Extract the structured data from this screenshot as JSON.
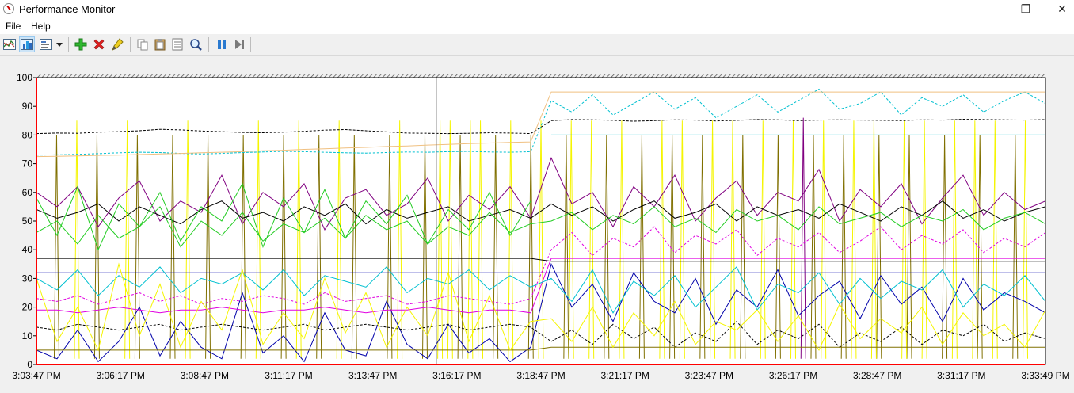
{
  "window": {
    "title": "Performance Monitor",
    "minimize_glyph": "—",
    "restore_glyph": "❐",
    "close_glyph": "✕"
  },
  "menu": {
    "items": [
      "File",
      "Help"
    ]
  },
  "toolbar": {
    "icons": [
      "view-graph-icon",
      "view-histogram-icon",
      "view-report-icon",
      "dropdown-arrow-icon",
      "add-counter-icon",
      "delete-counter-icon",
      "highlight-icon",
      "copy-properties-icon",
      "paste-counter-list-icon",
      "properties-icon",
      "zoom-icon",
      "freeze-display-icon",
      "update-data-icon"
    ]
  },
  "chart_data": {
    "type": "line",
    "ylim": [
      0,
      100
    ],
    "y_ticks": [
      0,
      10,
      20,
      30,
      40,
      50,
      60,
      70,
      80,
      90,
      100
    ],
    "x_tick_labels": [
      "3:03:47 PM",
      "3:06:17 PM",
      "3:08:47 PM",
      "3:11:17 PM",
      "3:13:47 PM",
      "3:16:17 PM",
      "3:18:47 PM",
      "3:21:17 PM",
      "3:23:47 PM",
      "3:26:17 PM",
      "3:28:47 PM",
      "3:31:17 PM",
      "3:33:49 PM"
    ],
    "grid": false,
    "colors": {
      "yellow": "#f5f500",
      "olive": "#807000",
      "green": "#22cc22",
      "purple": "#800080",
      "navy": "#0000aa",
      "cyan": "#00c0d0",
      "magenta": "#e000e0",
      "black": "#000000",
      "peach": "#f0c080",
      "red_axis": "#ff0000"
    },
    "series": [
      {
        "color": "black",
        "dash": "3,2",
        "values": [
          80.5,
          80.7,
          80.6,
          81,
          81.2,
          81.5,
          82,
          81.8,
          81.4,
          81.2,
          80.9,
          80.8,
          81,
          81.3,
          81.7,
          81.9,
          81.5,
          81.1,
          80.7,
          80.6,
          80.5,
          80.6,
          80.8,
          80.7,
          80.5,
          85,
          85.4,
          85.3,
          85.1,
          84.8,
          85,
          85.3,
          85.2,
          84.9,
          85.1,
          85.4,
          85.3,
          85,
          85.2,
          85.3,
          85.2,
          85.1,
          85,
          85.3,
          85.2,
          85.5,
          85.4,
          85.3,
          85.2,
          85.4
        ]
      },
      {
        "color": "cyan",
        "dash": "3,2",
        "values": [
          73,
          73.1,
          73.3,
          73.5,
          73.8,
          74,
          73.9,
          73.6,
          73.4,
          73.6,
          73.9,
          74.1,
          74.3,
          74.2,
          74,
          73.8,
          73.7,
          73.9,
          74.1,
          74,
          74.2,
          74.3,
          74.1,
          74,
          74.2,
          92,
          88,
          94,
          87,
          91,
          95,
          89,
          93,
          86,
          90,
          94,
          88,
          92,
          96,
          89,
          91,
          95,
          87,
          93,
          90,
          94,
          88,
          92,
          95,
          91
        ]
      },
      {
        "color": "peach",
        "dash": "",
        "values": [
          72.5,
          72.6,
          72.7,
          72.9,
          73,
          73.2,
          73.4,
          73.6,
          73.8,
          74,
          74.2,
          74.5,
          74.7,
          75,
          75.2,
          75.5,
          75.7,
          76,
          76.2,
          76.5,
          76.7,
          77,
          77.2,
          77.4,
          77.6,
          95,
          95,
          95,
          95,
          95,
          95,
          95,
          95,
          95,
          95,
          95,
          95,
          95,
          95,
          95,
          95,
          95,
          95,
          95,
          95,
          95,
          95,
          95,
          95,
          95
        ]
      },
      {
        "color": "cyan",
        "dash": "",
        "values": [
          null,
          null,
          null,
          null,
          null,
          null,
          null,
          null,
          null,
          null,
          null,
          null,
          null,
          null,
          null,
          null,
          null,
          null,
          null,
          null,
          null,
          null,
          null,
          null,
          null,
          80,
          80,
          80,
          80,
          80,
          80,
          80,
          80,
          80,
          80,
          80,
          80,
          80,
          80,
          80,
          80,
          80,
          80,
          80,
          80,
          80,
          80,
          80,
          80,
          80
        ]
      },
      {
        "color": "purple",
        "dash": "",
        "values": [
          60,
          55,
          62,
          48,
          58,
          64,
          50,
          57,
          53,
          66,
          49,
          60,
          55,
          63,
          47,
          58,
          61,
          52,
          56,
          65,
          50,
          59,
          54,
          62,
          51,
          72,
          56,
          60,
          48,
          62,
          55,
          66,
          50,
          58,
          64,
          52,
          60,
          57,
          68,
          50,
          61,
          55,
          63,
          49,
          58,
          66,
          52,
          60,
          54,
          57
        ]
      },
      {
        "color": "black",
        "dash": "",
        "values": [
          54,
          51,
          53,
          56,
          50,
          55,
          52,
          49,
          54,
          57,
          51,
          53,
          50,
          55,
          52,
          56,
          49,
          54,
          51,
          53,
          55,
          50,
          52,
          54,
          51,
          56,
          52,
          55,
          50,
          54,
          57,
          51,
          53,
          56,
          50,
          55,
          52,
          54,
          51,
          56,
          53,
          50,
          55,
          52,
          57,
          51,
          54,
          50,
          53,
          55
        ]
      },
      {
        "color": "green",
        "dash": "",
        "values": [
          58,
          45,
          62,
          40,
          56,
          48,
          60,
          43,
          55,
          50,
          63,
          41,
          58,
          46,
          61,
          44,
          57,
          49,
          59,
          42,
          54,
          47,
          60,
          45,
          57,
          null,
          null,
          null,
          null,
          null,
          null,
          null,
          null,
          null,
          null,
          null,
          null,
          null,
          null,
          null,
          null,
          null,
          null,
          null,
          null,
          null,
          null,
          null,
          null,
          null
        ]
      },
      {
        "color": "green",
        "dash": "",
        "values": [
          46,
          50,
          42,
          52,
          44,
          48,
          55,
          41,
          50,
          45,
          53,
          43,
          49,
          46,
          51,
          44,
          52,
          47,
          50,
          42,
          48,
          45,
          53,
          46,
          49,
          50,
          53,
          47,
          52,
          49,
          55,
          48,
          51,
          46,
          54,
          50,
          52,
          47,
          55,
          49,
          51,
          53,
          48,
          52,
          50,
          54,
          47,
          51,
          53,
          49
        ]
      },
      {
        "color": "navy",
        "dash": "",
        "values": [
          5,
          2,
          12,
          1,
          8,
          20,
          3,
          15,
          6,
          2,
          25,
          4,
          10,
          1,
          18,
          5,
          3,
          22,
          7,
          2,
          14,
          4,
          9,
          1,
          6,
          35,
          20,
          28,
          15,
          32,
          22,
          18,
          30,
          14,
          26,
          20,
          33,
          17,
          24,
          29,
          16,
          31,
          21,
          27,
          15,
          30,
          19,
          25,
          22,
          18
        ]
      },
      {
        "color": "navy",
        "dash": "",
        "values": [
          32,
          32,
          32,
          32,
          32,
          32,
          32,
          32,
          32,
          32,
          32,
          32,
          32,
          32,
          32,
          32,
          32,
          32,
          32,
          32,
          32,
          32,
          32,
          32,
          32,
          32,
          32,
          32,
          32,
          32,
          32,
          32,
          32,
          32,
          32,
          32,
          32,
          32,
          32,
          32,
          32,
          32,
          32,
          32,
          32,
          32,
          32,
          32,
          32,
          32
        ]
      },
      {
        "color": "magenta",
        "dash": "",
        "values": [
          19,
          19,
          18,
          19,
          20,
          19,
          18,
          19,
          19,
          20,
          19,
          18,
          19,
          19,
          20,
          19,
          18,
          19,
          19,
          20,
          19,
          18,
          19,
          19,
          18,
          37,
          37,
          37,
          37,
          37,
          37,
          37,
          37,
          37,
          37,
          37,
          37,
          37,
          37,
          37,
          37,
          37,
          37,
          37,
          37,
          37,
          37,
          37,
          37,
          37
        ]
      },
      {
        "color": "magenta",
        "dash": "3,2",
        "values": [
          23,
          22,
          24,
          21,
          23,
          25,
          22,
          24,
          21,
          23,
          22,
          24,
          23,
          21,
          25,
          22,
          23,
          24,
          21,
          22,
          24,
          23,
          22,
          21,
          23,
          40,
          46,
          38,
          44,
          41,
          48,
          39,
          45,
          42,
          47,
          38,
          44,
          41,
          46,
          39,
          43,
          48,
          40,
          45,
          42,
          47,
          39,
          44,
          41,
          46
        ]
      },
      {
        "color": "cyan",
        "dash": "",
        "values": [
          30,
          26,
          33,
          24,
          31,
          27,
          34,
          25,
          30,
          28,
          32,
          26,
          33,
          24,
          31,
          29,
          27,
          34,
          25,
          30,
          28,
          33,
          26,
          31,
          27,
          30,
          22,
          33,
          18,
          29,
          24,
          31,
          20,
          27,
          34,
          19,
          28,
          25,
          32,
          21,
          30,
          23,
          29,
          26,
          33,
          20,
          28,
          24,
          31,
          22
        ]
      },
      {
        "color": "black",
        "dash": "3,2",
        "values": [
          13,
          12,
          14,
          13,
          12,
          13,
          14,
          12,
          13,
          14,
          13,
          12,
          13,
          14,
          12,
          13,
          14,
          13,
          12,
          13,
          14,
          12,
          13,
          14,
          13,
          8,
          12,
          7,
          14,
          9,
          13,
          6,
          11,
          8,
          15,
          7,
          12,
          9,
          14,
          6,
          11,
          8,
          13,
          7,
          12,
          10,
          14,
          8,
          11,
          9
        ]
      },
      {
        "color": "olive",
        "dash": "",
        "values": [
          5,
          5,
          5,
          5,
          5,
          5,
          5,
          5,
          5,
          5,
          5,
          5,
          5,
          5,
          5,
          5,
          5,
          5,
          5,
          5,
          5,
          5,
          5,
          5,
          5,
          6,
          6,
          6,
          6,
          6,
          6,
          6,
          6,
          6,
          6,
          6,
          6,
          6,
          6,
          6,
          6,
          6,
          6,
          6,
          6,
          6,
          6,
          6,
          6,
          6
        ]
      },
      {
        "color": "yellow",
        "dash": "",
        "values": [
          30,
          8,
          20,
          5,
          35,
          10,
          28,
          6,
          22,
          12,
          33,
          7,
          18,
          9,
          30,
          11,
          25,
          6,
          20,
          10,
          32,
          8,
          24,
          5,
          15,
          16,
          8,
          20,
          6,
          18,
          10,
          22,
          7,
          15,
          12,
          19,
          8,
          17,
          5,
          21,
          9,
          16,
          11,
          20,
          7,
          18,
          10,
          14,
          6,
          19
        ]
      },
      {
        "color": "black",
        "dash": "",
        "values": [
          37,
          37,
          37,
          37,
          37,
          37,
          37,
          37,
          37,
          37,
          37,
          37,
          37,
          37,
          37,
          37,
          37,
          37,
          37,
          37,
          37,
          37,
          37,
          37,
          37,
          36,
          36,
          36,
          36,
          36,
          36,
          36,
          36,
          36,
          36,
          36,
          36,
          36,
          36,
          36,
          36,
          36,
          36,
          36,
          36,
          36,
          36,
          36,
          36,
          36
        ]
      }
    ],
    "spikes": [
      {
        "color": "olive",
        "height": 80,
        "x_frac": [
          0.02,
          0.06,
          0.1,
          0.135,
          0.17,
          0.205,
          0.245,
          0.28,
          0.315,
          0.35,
          0.385,
          0.42,
          0.455,
          0.49,
          0.525,
          0.565,
          0.6,
          0.63,
          0.66,
          0.7,
          0.735,
          0.77,
          0.8,
          0.835,
          0.865,
          0.9,
          0.935,
          0.97
        ]
      },
      {
        "color": "yellow",
        "height": 85,
        "x_frac": [
          0.04,
          0.09,
          0.15,
          0.22,
          0.26,
          0.3,
          0.36,
          0.41,
          0.44,
          0.47,
          0.4,
          0.43,
          0.5,
          0.53,
          0.55,
          0.58,
          0.62,
          0.64,
          0.67,
          0.69,
          0.72,
          0.75,
          0.78,
          0.81,
          0.83,
          0.86,
          0.88,
          0.91,
          0.93,
          0.95,
          0.98
        ]
      },
      {
        "color": "purple",
        "height": 86,
        "x_frac": [
          0.76
        ]
      }
    ]
  }
}
